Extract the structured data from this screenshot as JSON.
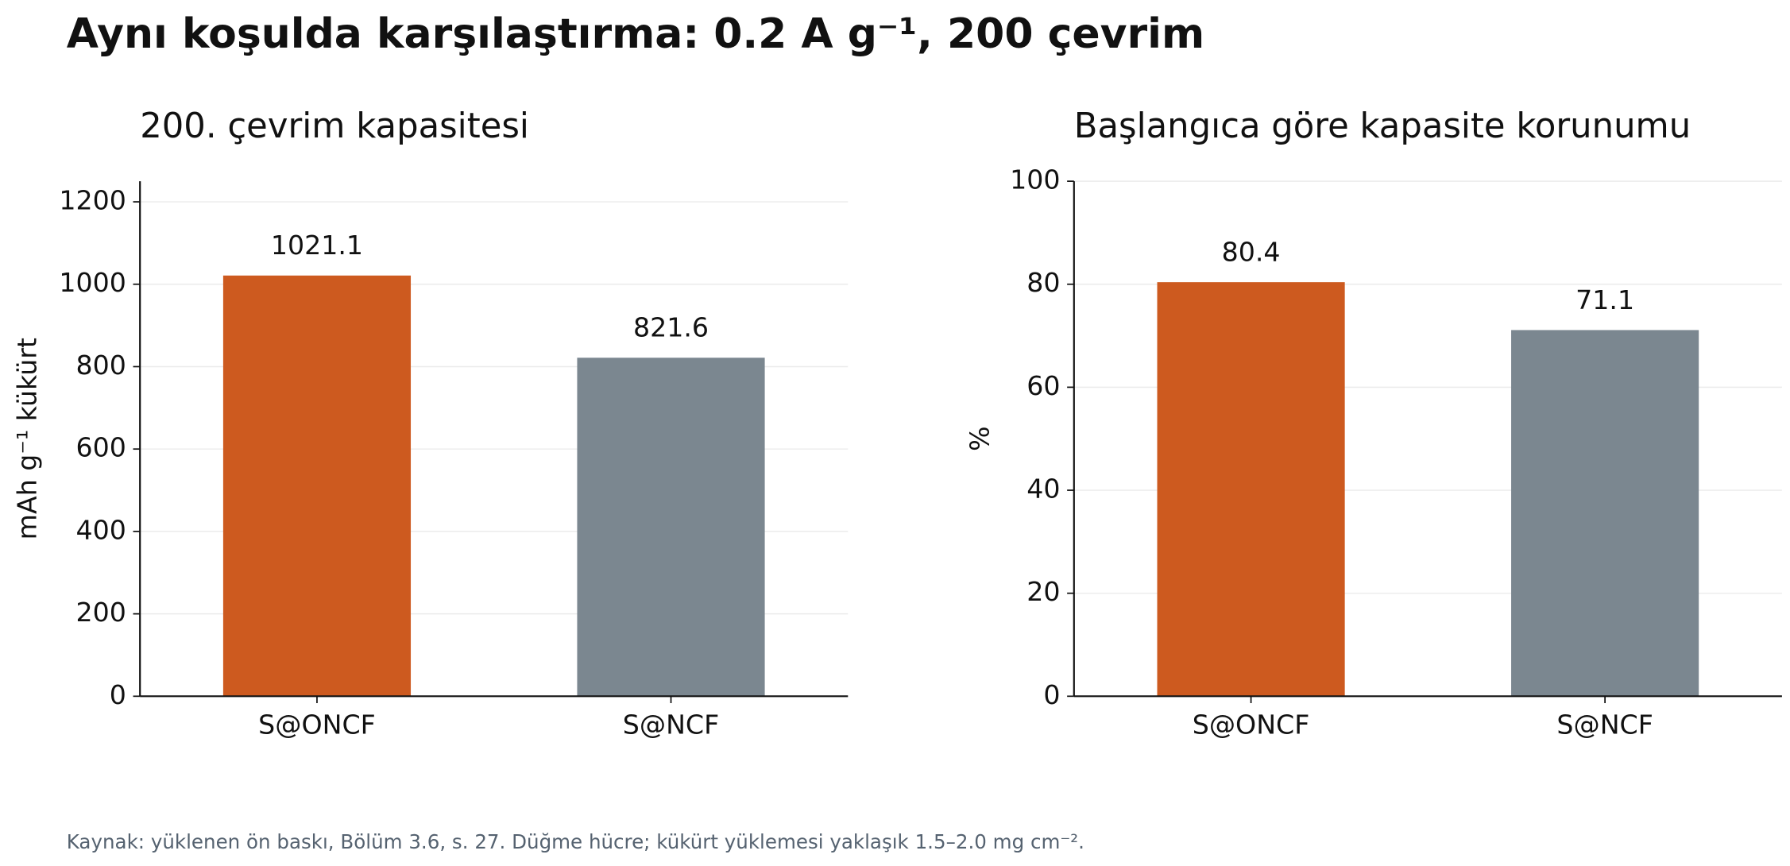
{
  "title": "Aynı koşulda karşılaştırma: 0.2 A g⁻¹, 200 çevrim",
  "source": "Kaynak: yüklenen ön baskı, Bölüm 3.6, s. 27. Düğme hücre; kükürt yüklemesi yaklaşık 1.5–2.0 mg cm⁻².",
  "chart_data": [
    {
      "type": "bar",
      "title": "200. çevrim kapasitesi",
      "y_label": "mAh g⁻¹ kükürt",
      "categories": [
        "S@ONCF",
        "S@NCF"
      ],
      "values": [
        1021.1,
        821.6
      ],
      "colors": [
        "#cd5a1f",
        "#7b8790"
      ],
      "ylim": [
        0,
        1250
      ],
      "yticks": [
        0,
        200,
        400,
        600,
        800,
        1000,
        1200
      ],
      "grid": true
    },
    {
      "type": "bar",
      "title": "Başlangıca göre kapasite korunumu",
      "y_label": "%",
      "categories": [
        "S@ONCF",
        "S@NCF"
      ],
      "values": [
        80.4,
        71.1
      ],
      "colors": [
        "#cd5a1f",
        "#7b8790"
      ],
      "ylim": [
        0,
        100
      ],
      "yticks": [
        0,
        20,
        40,
        60,
        80,
        100
      ],
      "grid": true
    }
  ]
}
